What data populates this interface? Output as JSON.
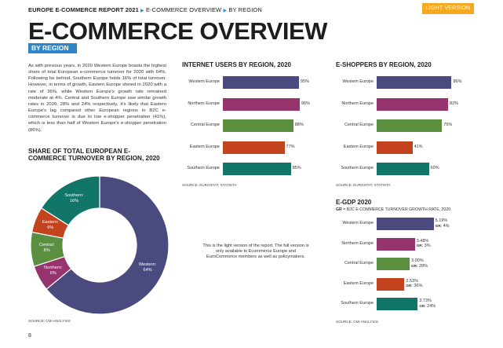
{
  "header": {
    "report": "EUROPE E-COMMERCE REPORT 2021",
    "crumb1": "E-COMMERCE OVERVIEW",
    "crumb2": "BY REGION",
    "badge": "LIGHT VERSION"
  },
  "title": "E-COMMERCE OVERVIEW",
  "subtitle": "BY REGION",
  "intro": "As with previous years, in 2020 Western Europe boasts the highest share of total European e-commerce turnover for 2020 with 64%. Following far behind, Southern Europe holds 16% of total turnover. However, in terms of growth, Eastern Europe shined in 2020 with a rate of 36%, while Western Europe's growth rate remained moderate at 4%. Central and Southern Europe saw similar growth rates in 2020, 28% and 24% respectively. It's likely that Eastern Europe's lag compared other European regions in B2C e-commerce turnover is due to low e-shopper penetration (41%), which is less than half of Western Europe's e-shopper penetration (86%).",
  "colors": {
    "western": "#4a4a7e",
    "northern": "#96346d",
    "central": "#5a8f40",
    "eastern": "#c2431d",
    "southern": "#117568"
  },
  "pie": {
    "title": "SHARE OF TOTAL EUROPEAN E-COMMERCE TURNOVER BY REGION, 2020",
    "source": "SOURCE: CMI ANALYSIS"
  },
  "internet": {
    "title": "INTERNET USERS BY REGION, 2020",
    "source": "SOURCE: EUROSTAT, STATISTA"
  },
  "eshoppers": {
    "title": "E-SHOPPERS BY REGION, 2020",
    "source": "SOURCE: EUROSTAT, STATISTA"
  },
  "egdp": {
    "title": "E-GDP 2020",
    "subtitle_bold": "GR",
    "subtitle_rest": " = B2C E-COMMERCE TURNOVER GROWTH RATE, 2020",
    "source": "SOURCE: CMI ANALYSIS"
  },
  "note": "This is the light version of the report. The full version is only available to Ecommerce Europe and EuroCommerce members as well as policymakers.",
  "page_number": "8",
  "chart_data": [
    {
      "type": "pie",
      "title": "SHARE OF TOTAL EUROPEAN E-COMMERCE TURNOVER BY REGION, 2020",
      "categories": [
        "Western",
        "Northern",
        "Central",
        "Eastern",
        "Southern"
      ],
      "values": [
        64,
        6,
        8,
        6,
        16
      ],
      "labels": [
        "Western: 64%",
        "Northern: 6%",
        "Central: 8%",
        "Eastern: 6%",
        "Southern: 16%"
      ]
    },
    {
      "type": "bar",
      "orientation": "horizontal",
      "title": "INTERNET USERS BY REGION, 2020",
      "categories": [
        "Western Europe",
        "Northern Europe",
        "Central Europe",
        "Eastern Europe",
        "Southern Europe"
      ],
      "values": [
        95,
        96,
        88,
        77,
        85
      ],
      "labels": [
        "95%",
        "96%",
        "88%",
        "77%",
        "85%"
      ],
      "xlim": [
        0,
        100
      ]
    },
    {
      "type": "bar",
      "orientation": "horizontal",
      "title": "E-SHOPPERS BY REGION, 2020",
      "categories": [
        "Western Europe",
        "Northern Europe",
        "Central Europe",
        "Eastern Europe",
        "Southern Europe"
      ],
      "values": [
        86,
        82,
        75,
        41,
        60
      ],
      "labels": [
        "86%",
        "82%",
        "75%",
        "41%",
        "60%"
      ],
      "xlim": [
        0,
        100
      ]
    },
    {
      "type": "bar",
      "orientation": "horizontal",
      "title": "E-GDP 2020",
      "categories": [
        "Western Europe",
        "Northern Europe",
        "Central Europe",
        "Eastern Europe",
        "Southern Europe"
      ],
      "values": [
        5.19,
        3.48,
        3.0,
        2.53,
        3.73
      ],
      "labels": [
        "5.19%",
        "3.48%",
        "3.00%",
        "2.53%",
        "3.73%"
      ],
      "growth_labels": [
        "GR: 4%",
        "GR: 3%",
        "GR: 28%",
        "GR: 36%",
        "GR: 24%"
      ],
      "xlim": [
        0,
        6
      ]
    }
  ]
}
